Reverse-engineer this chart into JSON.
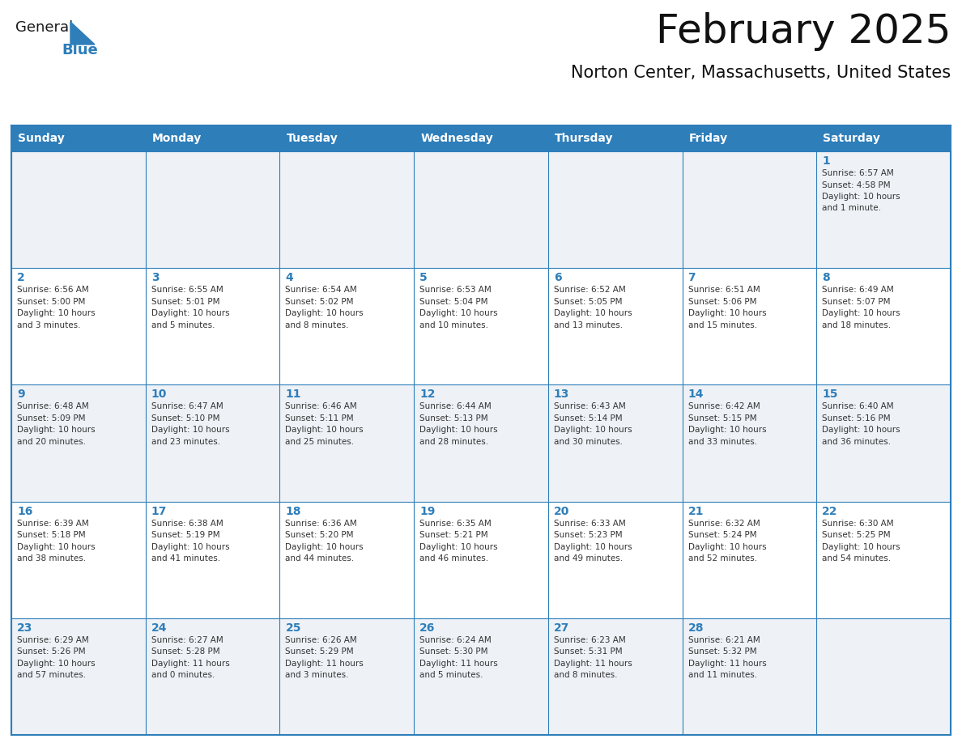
{
  "title": "February 2025",
  "subtitle": "Norton Center, Massachusetts, United States",
  "header_color": "#2e7eba",
  "header_text_color": "#ffffff",
  "cell_bg_color": "#ffffff",
  "cell_alt_bg_color": "#eef2f7",
  "border_color": "#2e7eba",
  "day_names": [
    "Sunday",
    "Monday",
    "Tuesday",
    "Wednesday",
    "Thursday",
    "Friday",
    "Saturday"
  ],
  "day_number_color": "#2e7eba",
  "text_color": "#333333",
  "logo_general_color": "#1a1a1a",
  "logo_blue_color": "#2e7eba",
  "weeks": [
    [
      {
        "day": 0,
        "text": ""
      },
      {
        "day": 0,
        "text": ""
      },
      {
        "day": 0,
        "text": ""
      },
      {
        "day": 0,
        "text": ""
      },
      {
        "day": 0,
        "text": ""
      },
      {
        "day": 0,
        "text": ""
      },
      {
        "day": 1,
        "text": "Sunrise: 6:57 AM\nSunset: 4:58 PM\nDaylight: 10 hours\nand 1 minute."
      }
    ],
    [
      {
        "day": 2,
        "text": "Sunrise: 6:56 AM\nSunset: 5:00 PM\nDaylight: 10 hours\nand 3 minutes."
      },
      {
        "day": 3,
        "text": "Sunrise: 6:55 AM\nSunset: 5:01 PM\nDaylight: 10 hours\nand 5 minutes."
      },
      {
        "day": 4,
        "text": "Sunrise: 6:54 AM\nSunset: 5:02 PM\nDaylight: 10 hours\nand 8 minutes."
      },
      {
        "day": 5,
        "text": "Sunrise: 6:53 AM\nSunset: 5:04 PM\nDaylight: 10 hours\nand 10 minutes."
      },
      {
        "day": 6,
        "text": "Sunrise: 6:52 AM\nSunset: 5:05 PM\nDaylight: 10 hours\nand 13 minutes."
      },
      {
        "day": 7,
        "text": "Sunrise: 6:51 AM\nSunset: 5:06 PM\nDaylight: 10 hours\nand 15 minutes."
      },
      {
        "day": 8,
        "text": "Sunrise: 6:49 AM\nSunset: 5:07 PM\nDaylight: 10 hours\nand 18 minutes."
      }
    ],
    [
      {
        "day": 9,
        "text": "Sunrise: 6:48 AM\nSunset: 5:09 PM\nDaylight: 10 hours\nand 20 minutes."
      },
      {
        "day": 10,
        "text": "Sunrise: 6:47 AM\nSunset: 5:10 PM\nDaylight: 10 hours\nand 23 minutes."
      },
      {
        "day": 11,
        "text": "Sunrise: 6:46 AM\nSunset: 5:11 PM\nDaylight: 10 hours\nand 25 minutes."
      },
      {
        "day": 12,
        "text": "Sunrise: 6:44 AM\nSunset: 5:13 PM\nDaylight: 10 hours\nand 28 minutes."
      },
      {
        "day": 13,
        "text": "Sunrise: 6:43 AM\nSunset: 5:14 PM\nDaylight: 10 hours\nand 30 minutes."
      },
      {
        "day": 14,
        "text": "Sunrise: 6:42 AM\nSunset: 5:15 PM\nDaylight: 10 hours\nand 33 minutes."
      },
      {
        "day": 15,
        "text": "Sunrise: 6:40 AM\nSunset: 5:16 PM\nDaylight: 10 hours\nand 36 minutes."
      }
    ],
    [
      {
        "day": 16,
        "text": "Sunrise: 6:39 AM\nSunset: 5:18 PM\nDaylight: 10 hours\nand 38 minutes."
      },
      {
        "day": 17,
        "text": "Sunrise: 6:38 AM\nSunset: 5:19 PM\nDaylight: 10 hours\nand 41 minutes."
      },
      {
        "day": 18,
        "text": "Sunrise: 6:36 AM\nSunset: 5:20 PM\nDaylight: 10 hours\nand 44 minutes."
      },
      {
        "day": 19,
        "text": "Sunrise: 6:35 AM\nSunset: 5:21 PM\nDaylight: 10 hours\nand 46 minutes."
      },
      {
        "day": 20,
        "text": "Sunrise: 6:33 AM\nSunset: 5:23 PM\nDaylight: 10 hours\nand 49 minutes."
      },
      {
        "day": 21,
        "text": "Sunrise: 6:32 AM\nSunset: 5:24 PM\nDaylight: 10 hours\nand 52 minutes."
      },
      {
        "day": 22,
        "text": "Sunrise: 6:30 AM\nSunset: 5:25 PM\nDaylight: 10 hours\nand 54 minutes."
      }
    ],
    [
      {
        "day": 23,
        "text": "Sunrise: 6:29 AM\nSunset: 5:26 PM\nDaylight: 10 hours\nand 57 minutes."
      },
      {
        "day": 24,
        "text": "Sunrise: 6:27 AM\nSunset: 5:28 PM\nDaylight: 11 hours\nand 0 minutes."
      },
      {
        "day": 25,
        "text": "Sunrise: 6:26 AM\nSunset: 5:29 PM\nDaylight: 11 hours\nand 3 minutes."
      },
      {
        "day": 26,
        "text": "Sunrise: 6:24 AM\nSunset: 5:30 PM\nDaylight: 11 hours\nand 5 minutes."
      },
      {
        "day": 27,
        "text": "Sunrise: 6:23 AM\nSunset: 5:31 PM\nDaylight: 11 hours\nand 8 minutes."
      },
      {
        "day": 28,
        "text": "Sunrise: 6:21 AM\nSunset: 5:32 PM\nDaylight: 11 hours\nand 11 minutes."
      },
      {
        "day": 0,
        "text": ""
      }
    ]
  ]
}
